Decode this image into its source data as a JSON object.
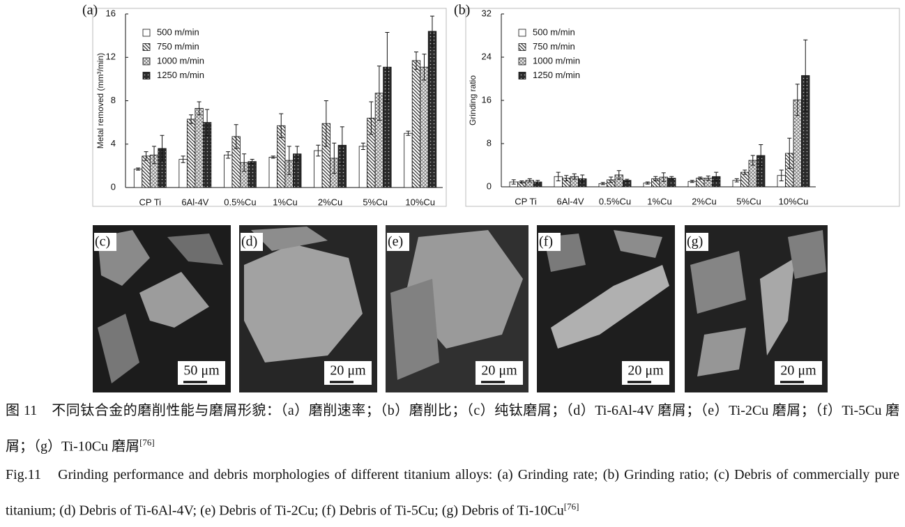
{
  "chart_data": [
    {
      "type": "bar",
      "panel_label": "(a)",
      "y_label": "Metal removed (mm³/min)",
      "categories": [
        "CP Ti",
        "6Al-4V",
        "0.5%Cu",
        "1%Cu",
        "2%Cu",
        "5%Cu",
        "10%Cu"
      ],
      "ylim": [
        0,
        16
      ],
      "yticks": [
        0,
        4,
        8,
        12,
        16
      ],
      "legend": "upper-left",
      "series": [
        {
          "name": "500 m/min",
          "color": "#ffffff",
          "pattern": "solid",
          "values": [
            1.7,
            2.6,
            3.0,
            2.8,
            3.4,
            3.8,
            5.0
          ],
          "errors": [
            0.1,
            0.3,
            0.3,
            0.1,
            0.5,
            0.3,
            0.2
          ]
        },
        {
          "name": "750 m/min",
          "color": "#333333",
          "pattern": "hatch",
          "values": [
            2.9,
            6.3,
            4.7,
            5.7,
            5.9,
            6.4,
            11.7
          ],
          "errors": [
            0.4,
            0.4,
            1.1,
            1.1,
            2.1,
            1.5,
            0.8
          ]
        },
        {
          "name": "1000 m/min",
          "color": "#555555",
          "pattern": "cross",
          "values": [
            3.0,
            7.3,
            2.3,
            2.5,
            2.7,
            8.7,
            11.1
          ],
          "errors": [
            0.8,
            0.6,
            0.8,
            1.3,
            1.4,
            2.5,
            1.2
          ]
        },
        {
          "name": "1250 m/min",
          "color": "#2a2a2a",
          "pattern": "dots",
          "values": [
            3.6,
            6.0,
            2.4,
            3.1,
            3.9,
            11.1,
            14.4
          ],
          "errors": [
            1.2,
            1.2,
            0.2,
            0.7,
            1.7,
            3.2,
            1.4
          ]
        }
      ]
    },
    {
      "type": "bar",
      "panel_label": "(b)",
      "y_label": "Grinding ratio",
      "categories": [
        "CP Ti",
        "6Al-4V",
        "0.5%Cu",
        "1%Cu",
        "2%Cu",
        "5%Cu",
        "10%Cu"
      ],
      "ylim": [
        0,
        32
      ],
      "yticks": [
        0,
        8,
        16,
        24,
        32
      ],
      "legend": "upper-left",
      "series": [
        {
          "name": "500 m/min",
          "color": "#ffffff",
          "pattern": "solid",
          "values": [
            0.9,
            1.9,
            0.6,
            0.7,
            1.0,
            1.2,
            2.1
          ],
          "errors": [
            0.4,
            0.8,
            0.2,
            0.2,
            0.2,
            0.3,
            1.0
          ]
        },
        {
          "name": "750 m/min",
          "color": "#333333",
          "pattern": "hatch",
          "values": [
            0.9,
            1.6,
            1.3,
            1.5,
            1.6,
            2.7,
            6.2
          ],
          "errors": [
            0.2,
            0.5,
            0.5,
            0.4,
            0.2,
            0.4,
            2.8
          ]
        },
        {
          "name": "1000 m/min",
          "color": "#555555",
          "pattern": "cross",
          "values": [
            1.2,
            1.9,
            2.2,
            1.8,
            1.6,
            4.9,
            16.1
          ],
          "errors": [
            0.3,
            0.5,
            0.8,
            0.8,
            0.4,
            0.9,
            2.9
          ]
        },
        {
          "name": "1250 m/min",
          "color": "#2a2a2a",
          "pattern": "dots",
          "values": [
            0.9,
            1.5,
            1.2,
            1.6,
            1.9,
            5.8,
            20.6
          ],
          "errors": [
            0.3,
            0.7,
            0.2,
            0.3,
            0.8,
            2.0,
            6.6
          ]
        }
      ]
    }
  ],
  "micrographs": [
    {
      "label": "(c)",
      "scale_bar": "50 μm"
    },
    {
      "label": "(d)",
      "scale_bar": "20 μm"
    },
    {
      "label": "(e)",
      "scale_bar": "20 μm"
    },
    {
      "label": "(f)",
      "scale_bar": "20 μm"
    },
    {
      "label": "(g)",
      "scale_bar": "20 μm"
    }
  ],
  "caption_cn": {
    "text": "图 11　不同钛合金的磨削性能与磨屑形貌：（a）磨削速率；（b）磨削比；（c）纯钛磨屑；（d）Ti-6Al-4V 磨屑；（e）Ti-2Cu 磨屑；（f）Ti-5Cu 磨屑；（g）Ti-10Cu 磨屑",
    "ref": "[76]"
  },
  "caption_en": {
    "text": "Fig.11　Grinding performance and debris morphologies of different titanium alloys: (a) Grinding rate; (b) Grinding ratio; (c) Debris of commercially pure titanium; (d) Debris of Ti-6Al-4V; (e) Debris of Ti-2Cu; (f) Debris of Ti-5Cu; (g) Debris of Ti-10Cu",
    "ref": "[76]"
  }
}
